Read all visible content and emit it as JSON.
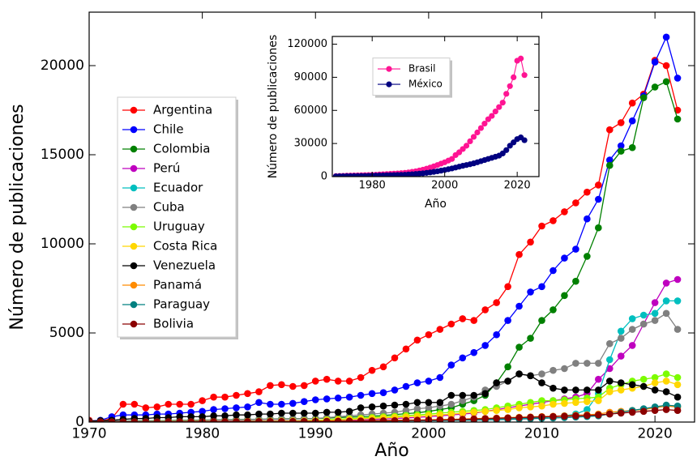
{
  "chart_data": [
    {
      "type": "line",
      "x_label": "Año",
      "y_label": "Número de publicaciones",
      "xlim": [
        1970,
        2023.5
      ],
      "ylim": [
        0,
        23000
      ],
      "xticks": [
        1970,
        1980,
        1990,
        2000,
        2010,
        2020
      ],
      "yticks": [
        0,
        5000,
        10000,
        15000,
        20000
      ],
      "legend": "center left",
      "marker": "circle",
      "x": [
        1970,
        1971,
        1972,
        1973,
        1974,
        1975,
        1976,
        1977,
        1978,
        1979,
        1980,
        1981,
        1982,
        1983,
        1984,
        1985,
        1986,
        1987,
        1988,
        1989,
        1990,
        1991,
        1992,
        1993,
        1994,
        1995,
        1996,
        1997,
        1998,
        1999,
        2000,
        2001,
        2002,
        2003,
        2004,
        2005,
        2006,
        2007,
        2008,
        2009,
        2010,
        2011,
        2012,
        2013,
        2014,
        2015,
        2016,
        2017,
        2018,
        2019,
        2020,
        2021,
        2022
      ],
      "series": [
        {
          "name": "Argentina",
          "color": "#ff0000",
          "values": [
            100,
            50,
            200,
            1000,
            1000,
            800,
            850,
            1000,
            1000,
            1000,
            1200,
            1400,
            1400,
            1500,
            1600,
            1700,
            2050,
            2100,
            2000,
            2050,
            2300,
            2400,
            2300,
            2300,
            2500,
            2900,
            3100,
            3600,
            4100,
            4600,
            4900,
            5200,
            5500,
            5800,
            5700,
            6300,
            6700,
            7600,
            9400,
            10100,
            11000,
            11300,
            11800,
            12300,
            12900,
            13300,
            16400,
            16800,
            17900,
            18400,
            20300,
            20000,
            17500
          ]
        },
        {
          "name": "Chile",
          "color": "#0000ff",
          "values": [
            50,
            100,
            300,
            400,
            400,
            400,
            450,
            450,
            500,
            550,
            600,
            700,
            750,
            800,
            850,
            1100,
            1000,
            1000,
            1050,
            1150,
            1250,
            1300,
            1350,
            1400,
            1500,
            1600,
            1650,
            1800,
            2000,
            2200,
            2300,
            2500,
            3200,
            3600,
            3900,
            4300,
            4900,
            5700,
            6500,
            7300,
            7600,
            8500,
            9200,
            9700,
            11400,
            12500,
            14700,
            15500,
            16900,
            18300,
            20200,
            21600,
            19300
          ]
        },
        {
          "name": "Colombia",
          "color": "#008000",
          "values": [
            20,
            30,
            50,
            60,
            70,
            80,
            80,
            90,
            100,
            100,
            110,
            120,
            130,
            140,
            150,
            160,
            170,
            180,
            190,
            200,
            200,
            220,
            250,
            280,
            300,
            330,
            370,
            420,
            470,
            520,
            600,
            700,
            800,
            1000,
            1200,
            1500,
            2200,
            3100,
            4200,
            4700,
            5700,
            6300,
            7100,
            7900,
            9300,
            10900,
            14400,
            15200,
            15400,
            18200,
            18800,
            19100,
            17000
          ]
        },
        {
          "name": "Perú",
          "color": "#bf00bf",
          "values": [
            10,
            10,
            20,
            20,
            20,
            30,
            30,
            30,
            40,
            40,
            40,
            50,
            50,
            60,
            60,
            70,
            70,
            80,
            80,
            90,
            90,
            100,
            110,
            120,
            130,
            150,
            170,
            200,
            230,
            260,
            300,
            350,
            400,
            450,
            500,
            600,
            700,
            800,
            900,
            1000,
            1100,
            1200,
            1300,
            1400,
            1600,
            2400,
            3000,
            3700,
            4300,
            5500,
            6700,
            7800,
            8000
          ]
        },
        {
          "name": "Ecuador",
          "color": "#00bfbf",
          "values": [
            10,
            10,
            10,
            15,
            15,
            15,
            20,
            20,
            20,
            20,
            20,
            25,
            25,
            25,
            30,
            30,
            30,
            35,
            35,
            40,
            40,
            45,
            50,
            55,
            60,
            65,
            70,
            80,
            90,
            100,
            100,
            110,
            120,
            130,
            140,
            150,
            170,
            190,
            210,
            240,
            270,
            300,
            350,
            450,
            700,
            1600,
            3500,
            5100,
            5800,
            6000,
            6100,
            6800,
            6800
          ]
        },
        {
          "name": "Cuba",
          "color": "#808080",
          "values": [
            50,
            50,
            60,
            60,
            70,
            70,
            80,
            80,
            90,
            90,
            100,
            110,
            120,
            130,
            140,
            150,
            160,
            170,
            180,
            190,
            200,
            250,
            300,
            350,
            400,
            450,
            500,
            550,
            650,
            750,
            800,
            900,
            1000,
            1200,
            1400,
            1800,
            2000,
            2300,
            2700,
            2600,
            2700,
            2900,
            3000,
            3300,
            3300,
            3300,
            4400,
            4700,
            5200,
            5500,
            5700,
            6100,
            5200
          ]
        },
        {
          "name": "Uruguay",
          "color": "#7cfc00",
          "values": [
            10,
            10,
            15,
            15,
            20,
            20,
            20,
            25,
            25,
            30,
            30,
            35,
            40,
            45,
            50,
            55,
            60,
            65,
            70,
            80,
            100,
            130,
            160,
            190,
            220,
            260,
            300,
            330,
            370,
            400,
            450,
            500,
            550,
            600,
            650,
            700,
            800,
            900,
            1000,
            1100,
            1200,
            1200,
            1250,
            1300,
            1350,
            1400,
            1900,
            2100,
            2300,
            2400,
            2500,
            2700,
            2500
          ]
        },
        {
          "name": "Costa Rica",
          "color": "#ffd700",
          "values": [
            10,
            10,
            10,
            15,
            15,
            15,
            20,
            20,
            20,
            25,
            25,
            30,
            30,
            35,
            40,
            45,
            50,
            55,
            60,
            65,
            80,
            100,
            120,
            150,
            180,
            210,
            240,
            270,
            300,
            330,
            370,
            410,
            450,
            500,
            550,
            600,
            650,
            700,
            800,
            850,
            900,
            1000,
            1050,
            1100,
            1150,
            1200,
            1700,
            1800,
            1900,
            2000,
            2200,
            2300,
            2100
          ]
        },
        {
          "name": "Venezuela",
          "color": "#000000",
          "values": [
            50,
            80,
            100,
            150,
            200,
            200,
            250,
            250,
            300,
            300,
            300,
            350,
            350,
            400,
            400,
            450,
            450,
            500,
            500,
            500,
            500,
            550,
            550,
            600,
            800,
            850,
            900,
            950,
            1000,
            1100,
            1100,
            1100,
            1500,
            1500,
            1500,
            1600,
            2200,
            2300,
            2700,
            2600,
            2200,
            1900,
            1800,
            1800,
            1800,
            1800,
            2300,
            2200,
            2100,
            2000,
            1800,
            1700,
            1400
          ]
        },
        {
          "name": "Panamá",
          "color": "#ff8c00",
          "values": [
            10,
            10,
            10,
            10,
            15,
            15,
            15,
            20,
            20,
            20,
            20,
            25,
            25,
            30,
            30,
            35,
            35,
            40,
            40,
            45,
            50,
            55,
            60,
            65,
            70,
            80,
            90,
            100,
            110,
            120,
            130,
            140,
            150,
            170,
            190,
            210,
            230,
            250,
            270,
            290,
            310,
            330,
            350,
            380,
            410,
            450,
            550,
            600,
            650,
            700,
            800,
            900,
            850
          ]
        },
        {
          "name": "Paraguay",
          "color": "#008080",
          "values": [
            5,
            5,
            5,
            5,
            10,
            10,
            10,
            10,
            10,
            15,
            15,
            15,
            15,
            20,
            20,
            20,
            25,
            25,
            30,
            30,
            30,
            35,
            35,
            40,
            40,
            45,
            50,
            55,
            60,
            65,
            70,
            80,
            90,
            100,
            110,
            120,
            130,
            150,
            170,
            190,
            210,
            230,
            250,
            280,
            310,
            350,
            450,
            550,
            650,
            750,
            850,
            950,
            900
          ]
        },
        {
          "name": "Bolivia",
          "color": "#8b0000",
          "values": [
            5,
            5,
            5,
            10,
            10,
            10,
            10,
            15,
            15,
            15,
            20,
            20,
            20,
            25,
            25,
            30,
            30,
            35,
            35,
            40,
            40,
            45,
            50,
            55,
            60,
            65,
            70,
            80,
            90,
            100,
            110,
            120,
            130,
            150,
            170,
            190,
            210,
            230,
            250,
            270,
            290,
            310,
            330,
            350,
            370,
            400,
            450,
            500,
            550,
            600,
            650,
            700,
            650
          ]
        }
      ]
    },
    {
      "type": "line",
      "x_label": "Año",
      "y_label": "Número de publicaciones",
      "xlim": [
        1969,
        2026
      ],
      "ylim": [
        0,
        127000
      ],
      "xticks": [
        1980,
        2000,
        2020
      ],
      "yticks": [
        0,
        30000,
        60000,
        90000,
        120000
      ],
      "legend": "upper left",
      "marker": "circle",
      "x": [
        1970,
        1971,
        1972,
        1973,
        1974,
        1975,
        1976,
        1977,
        1978,
        1979,
        1980,
        1981,
        1982,
        1983,
        1984,
        1985,
        1986,
        1987,
        1988,
        1989,
        1990,
        1991,
        1992,
        1993,
        1994,
        1995,
        1996,
        1997,
        1998,
        1999,
        2000,
        2001,
        2002,
        2003,
        2004,
        2005,
        2006,
        2007,
        2008,
        2009,
        2010,
        2011,
        2012,
        2013,
        2014,
        2015,
        2016,
        2017,
        2018,
        2019,
        2020,
        2021,
        2022
      ],
      "series": [
        {
          "name": "Brasil",
          "color": "#ff1493",
          "values": [
            500,
            600,
            700,
            800,
            900,
            1000,
            1100,
            1200,
            1300,
            1400,
            1500,
            1700,
            1900,
            2100,
            2300,
            2500,
            2700,
            2900,
            3100,
            3400,
            3800,
            4300,
            4800,
            5500,
            6300,
            7200,
            8200,
            9300,
            10500,
            11800,
            13000,
            14500,
            16000,
            19500,
            22000,
            25000,
            28000,
            32000,
            36000,
            40000,
            44000,
            48000,
            52000,
            55000,
            59000,
            63000,
            67000,
            75000,
            82000,
            90000,
            105000,
            107000,
            92000
          ]
        },
        {
          "name": "México",
          "color": "#000080",
          "values": [
            200,
            250,
            300,
            350,
            400,
            450,
            500,
            550,
            600,
            700,
            800,
            900,
            1000,
            1100,
            1200,
            1300,
            1400,
            1500,
            1600,
            1700,
            1900,
            2100,
            2400,
            2700,
            3000,
            3400,
            3800,
            4300,
            4800,
            5400,
            6000,
            6700,
            7400,
            8200,
            9000,
            9800,
            10500,
            11200,
            12000,
            13000,
            14000,
            15000,
            16000,
            17000,
            18000,
            19000,
            21000,
            24000,
            28000,
            31000,
            34000,
            35500,
            33000
          ]
        }
      ]
    }
  ]
}
